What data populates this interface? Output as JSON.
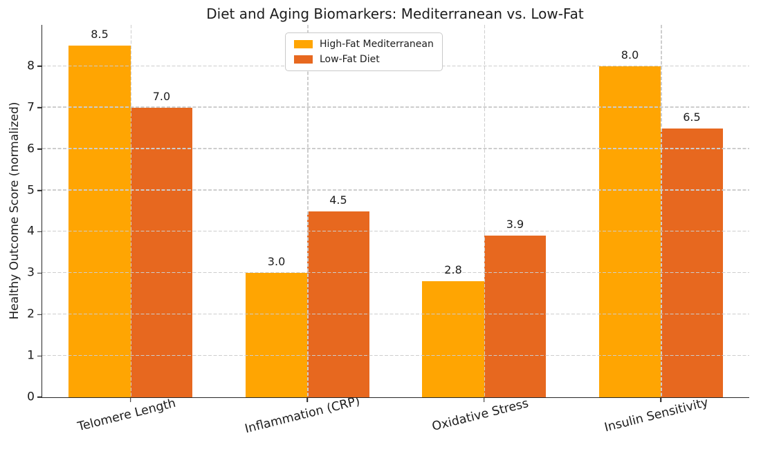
{
  "chart_data": {
    "type": "bar",
    "title": "Diet and Aging Biomarkers: Mediterranean vs. Low-Fat",
    "xlabel": "",
    "ylabel": "Healthy Outcome Score (normalized)",
    "categories": [
      "Telomere Length",
      "Inflammation (CRP)",
      "Oxidative Stress",
      "Insulin Sensitivity"
    ],
    "series": [
      {
        "name": "High-Fat Mediterranean",
        "color": "#FFA502",
        "values": [
          8.5,
          3.0,
          2.8,
          8.0
        ],
        "labels": [
          "8.5",
          "3.0",
          "2.8",
          "8.0"
        ]
      },
      {
        "name": "Low-Fat Diet",
        "color": "#E7681F",
        "values": [
          7.0,
          4.5,
          3.9,
          6.5
        ],
        "labels": [
          "7.0",
          "4.5",
          "3.9",
          "6.5"
        ]
      }
    ],
    "yticks": [
      0,
      1,
      2,
      3,
      4,
      5,
      6,
      7,
      8
    ],
    "ytick_labels": [
      "0",
      "1",
      "2",
      "3",
      "4",
      "5",
      "6",
      "7",
      "8"
    ],
    "ylim": [
      0,
      9
    ],
    "grid": {
      "visible": true,
      "style": "dashed",
      "color": "#cdcdcd",
      "drawn_above_bars": true,
      "axes": "both"
    },
    "legend": {
      "location": "upper center",
      "border_color": "#c9c9c9",
      "background": "#ffffff"
    },
    "layout_hints": {
      "bar_width_fraction_of_plot": 0.0875,
      "x_label_rotation_deg": -14
    }
  }
}
